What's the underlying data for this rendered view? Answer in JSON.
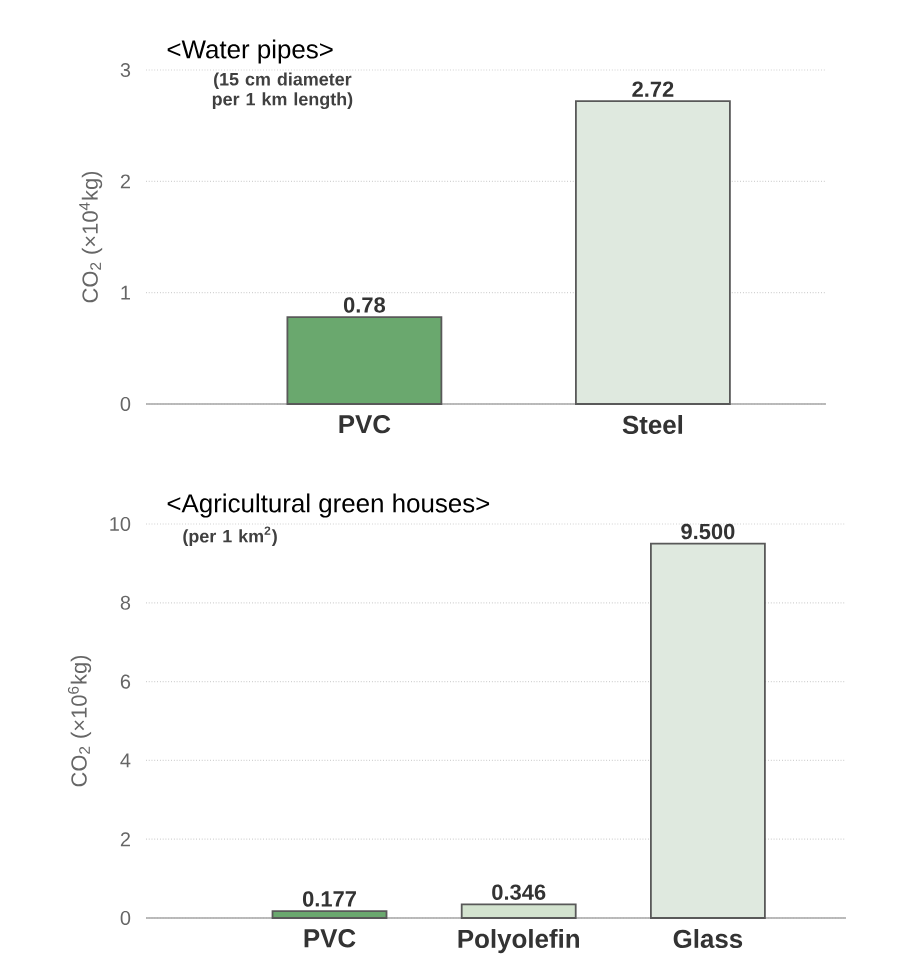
{
  "chart_data": [
    {
      "type": "bar",
      "title": "<Water pipes>",
      "subtitle": "(15 cm diameter per 1 km length)",
      "ylabel": "CO$_{2}$ (×10$^{4}$kg)",
      "categories": [
        "PVC",
        "Steel"
      ],
      "values": [
        0.78,
        2.72
      ],
      "colors": [
        "#6aa86e",
        "#dfe9df"
      ],
      "value_labels": [
        "0.78",
        "2.72"
      ],
      "ylim": [
        0,
        3
      ],
      "yticks": [
        0,
        1,
        2,
        3
      ],
      "grid": "y"
    },
    {
      "type": "bar",
      "title": "<Agricultural green houses>",
      "subtitle": "(per 1 km$^{2}$)",
      "ylabel": "CO$_{2}$ (×10$^{6}$kg)",
      "categories": [
        "PVC",
        "Polyolefin",
        "Glass"
      ],
      "values": [
        0.177,
        0.346,
        9.5
      ],
      "colors": [
        "#6aa86e",
        "#d3e3cf",
        "#dfe9df"
      ],
      "value_labels": [
        "0.177",
        "0.346",
        "9.500"
      ],
      "ylim": [
        0,
        10
      ],
      "yticks": [
        0,
        2,
        4,
        6,
        8,
        10
      ],
      "grid": "y"
    }
  ]
}
